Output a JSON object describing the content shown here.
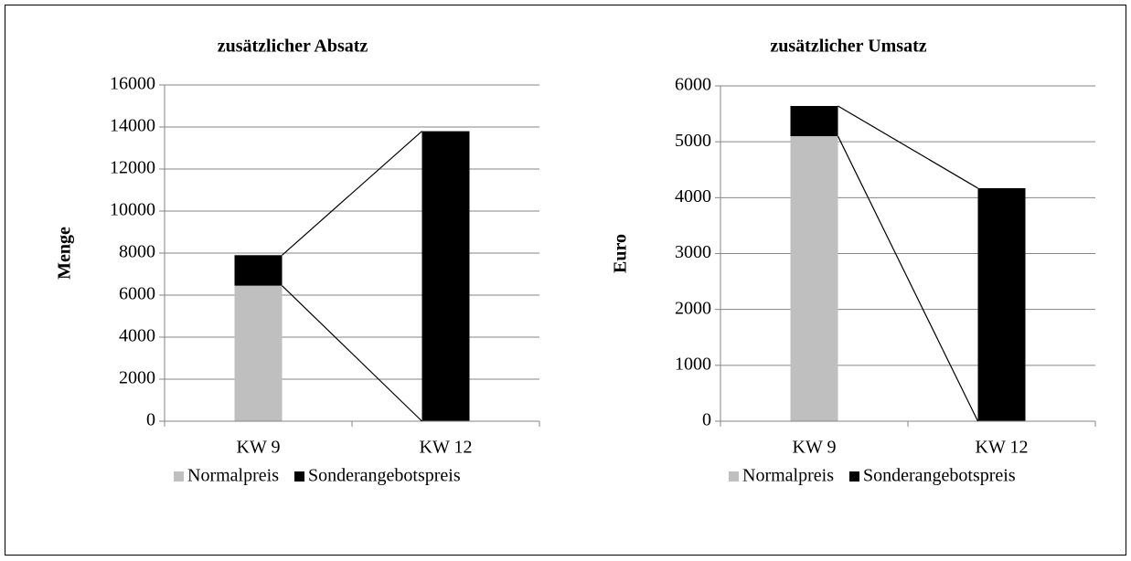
{
  "chart_data": [
    {
      "type": "bar",
      "stacked": true,
      "title": "zusätzlicher Absatz",
      "ylabel": "Menge",
      "categories": [
        "KW 9",
        "KW 12"
      ],
      "series": [
        {
          "name": "Normalpreis",
          "color": "#bfbfbf",
          "values": [
            6450,
            0
          ]
        },
        {
          "name": "Sonderangebotspreis",
          "color": "#000000",
          "values": [
            1450,
            13800
          ]
        }
      ],
      "ylim": [
        0,
        16000
      ],
      "yticks": [
        0,
        2000,
        4000,
        6000,
        8000,
        10000,
        12000,
        14000,
        16000
      ],
      "grid": true,
      "legend": "bottom"
    },
    {
      "type": "bar",
      "stacked": true,
      "title": "zusätzlicher Umsatz",
      "ylabel": "Euro",
      "categories": [
        "KW 9",
        "KW 12"
      ],
      "series": [
        {
          "name": "Normalpreis",
          "color": "#bfbfbf",
          "values": [
            5100,
            0
          ]
        },
        {
          "name": "Sonderangebotspreis",
          "color": "#000000",
          "values": [
            540,
            4170
          ]
        }
      ],
      "ylim": [
        0,
        6000
      ],
      "yticks": [
        0,
        1000,
        2000,
        3000,
        4000,
        5000,
        6000
      ],
      "grid": true,
      "legend": "bottom"
    }
  ]
}
